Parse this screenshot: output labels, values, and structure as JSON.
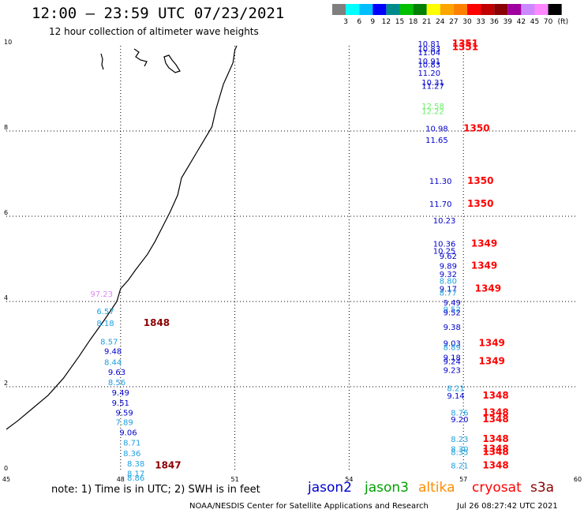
{
  "title": "12:00 – 23:59 UTC 07/23/2021",
  "subtitle": "12 hour collection of altimeter wave heights",
  "colorbar": {
    "colors": [
      "#7f7f7f",
      "#00ffff",
      "#00bfff",
      "#0000ff",
      "#008b8b",
      "#00c000",
      "#008000",
      "#ffff00",
      "#ffa500",
      "#ff8000",
      "#ff0000",
      "#c00000",
      "#8b0000",
      "#a000a0",
      "#cc88ff",
      "#ff88ff",
      "#000000"
    ],
    "labels": [
      "3",
      "6",
      "9",
      "12",
      "15",
      "18",
      "21",
      "24",
      "27",
      "30",
      "33",
      "36",
      "39",
      "42",
      "45",
      "70"
    ],
    "unit": "(ft)"
  },
  "axes": {
    "x_ticks": [
      "45",
      "48",
      "51",
      "54",
      "57",
      "60"
    ],
    "y_ticks": [
      "0",
      "2",
      "4",
      "6",
      "8",
      "10"
    ]
  },
  "chart_data": {
    "type": "scatter",
    "xlim": [
      45,
      60
    ],
    "ylim": [
      0,
      10
    ],
    "grid": true,
    "colors": {
      "jason2": "#0000cc",
      "jason3": "#00a000",
      "altika": "#ff8c00",
      "cryosat": "#ff0000",
      "s3a": "#8b0000",
      "cyan": "#1fa0e0",
      "lightgreen": "#66ee66",
      "violet": "#dd88ee"
    },
    "wave_labels": [
      {
        "x": 56.1,
        "y": 9.98,
        "text": "10.81",
        "c": "jason2"
      },
      {
        "x": 56.1,
        "y": 9.86,
        "text": "10.83",
        "c": "jason2"
      },
      {
        "x": 56.1,
        "y": 9.78,
        "text": "11.04",
        "c": "jason2"
      },
      {
        "x": 56.1,
        "y": 9.57,
        "text": "10.91",
        "c": "jason2"
      },
      {
        "x": 56.1,
        "y": 9.49,
        "text": "10.83",
        "c": "jason2"
      },
      {
        "x": 56.1,
        "y": 9.3,
        "text": "11.20",
        "c": "jason2"
      },
      {
        "x": 56.2,
        "y": 9.07,
        "text": "10.31",
        "c": "jason2"
      },
      {
        "x": 56.2,
        "y": 8.99,
        "text": "11.27",
        "c": "jason2"
      },
      {
        "x": 56.2,
        "y": 8.52,
        "text": "12.58",
        "c": "lightgreen"
      },
      {
        "x": 56.2,
        "y": 8.4,
        "text": "12.22",
        "c": "lightgreen"
      },
      {
        "x": 56.3,
        "y": 7.99,
        "text": "10.98",
        "c": "jason2"
      },
      {
        "x": 56.3,
        "y": 7.72,
        "text": "11.65",
        "c": "jason2"
      },
      {
        "x": 56.4,
        "y": 6.76,
        "text": "11.30",
        "c": "jason2"
      },
      {
        "x": 56.4,
        "y": 6.22,
        "text": "11.70",
        "c": "jason2"
      },
      {
        "x": 56.5,
        "y": 5.83,
        "text": "10.23",
        "c": "jason2"
      },
      {
        "x": 56.5,
        "y": 5.29,
        "text": "10.36",
        "c": "jason2"
      },
      {
        "x": 56.5,
        "y": 5.12,
        "text": "10.25",
        "c": "jason2"
      },
      {
        "x": 56.6,
        "y": 5.0,
        "text": "9.62",
        "c": "jason2"
      },
      {
        "x": 56.6,
        "y": 4.77,
        "text": "9.89",
        "c": "jason2"
      },
      {
        "x": 56.6,
        "y": 4.57,
        "text": "9.32",
        "c": "jason2"
      },
      {
        "x": 56.6,
        "y": 4.42,
        "text": "8.80",
        "c": "cyan"
      },
      {
        "x": 56.6,
        "y": 4.23,
        "text": "9.17",
        "c": "jason2"
      },
      {
        "x": 56.6,
        "y": 4.14,
        "text": "8.77",
        "c": "cyan"
      },
      {
        "x": 56.7,
        "y": 3.91,
        "text": "9.49",
        "c": "jason2"
      },
      {
        "x": 56.7,
        "y": 3.75,
        "text": "9.52",
        "c": "cyan"
      },
      {
        "x": 56.7,
        "y": 3.68,
        "text": "9.52",
        "c": "jason2"
      },
      {
        "x": 56.7,
        "y": 3.33,
        "text": "9.38",
        "c": "jason2"
      },
      {
        "x": 56.7,
        "y": 2.95,
        "text": "9.03",
        "c": "jason2"
      },
      {
        "x": 56.7,
        "y": 2.86,
        "text": "8.89",
        "c": "cyan"
      },
      {
        "x": 56.7,
        "y": 2.62,
        "text": "9.18",
        "c": "jason2"
      },
      {
        "x": 56.7,
        "y": 2.53,
        "text": "9.24",
        "c": "jason2"
      },
      {
        "x": 56.7,
        "y": 2.32,
        "text": "9.23",
        "c": "jason2"
      },
      {
        "x": 56.8,
        "y": 1.9,
        "text": "8.21",
        "c": "cyan"
      },
      {
        "x": 56.8,
        "y": 1.72,
        "text": "9.14",
        "c": "jason2"
      },
      {
        "x": 56.9,
        "y": 1.32,
        "text": "8.76",
        "c": "cyan"
      },
      {
        "x": 56.9,
        "y": 1.17,
        "text": "9.20",
        "c": "jason2"
      },
      {
        "x": 56.9,
        "y": 0.7,
        "text": "8.23",
        "c": "cyan"
      },
      {
        "x": 56.9,
        "y": 0.47,
        "text": "8.30",
        "c": "cyan"
      },
      {
        "x": 56.9,
        "y": 0.4,
        "text": "8.35",
        "c": "cyan"
      },
      {
        "x": 56.9,
        "y": 0.08,
        "text": "8.21",
        "c": "cyan"
      },
      {
        "x": 47.5,
        "y": 4.11,
        "text": "97.23",
        "c": "violet"
      },
      {
        "x": 47.6,
        "y": 3.7,
        "text": "6.57",
        "c": "cyan"
      },
      {
        "x": 47.6,
        "y": 3.43,
        "text": "8.18",
        "c": "cyan"
      },
      {
        "x": 47.7,
        "y": 2.99,
        "text": "8.57",
        "c": "cyan"
      },
      {
        "x": 47.8,
        "y": 2.77,
        "text": "9.48",
        "c": "jason2"
      },
      {
        "x": 47.8,
        "y": 2.51,
        "text": "8.44",
        "c": "cyan"
      },
      {
        "x": 47.9,
        "y": 2.28,
        "text": "9.63",
        "c": "jason2"
      },
      {
        "x": 47.9,
        "y": 2.04,
        "text": "8.56",
        "c": "cyan"
      },
      {
        "x": 48.0,
        "y": 1.8,
        "text": "9.49",
        "c": "jason2"
      },
      {
        "x": 48.0,
        "y": 1.56,
        "text": "9.51",
        "c": "jason2"
      },
      {
        "x": 48.1,
        "y": 1.32,
        "text": "9.59",
        "c": "jason2"
      },
      {
        "x": 48.1,
        "y": 1.1,
        "text": "7.89",
        "c": "cyan"
      },
      {
        "x": 48.2,
        "y": 0.86,
        "text": "9.06",
        "c": "jason2"
      },
      {
        "x": 48.3,
        "y": 0.62,
        "text": "8.71",
        "c": "cyan"
      },
      {
        "x": 48.3,
        "y": 0.37,
        "text": "8.36",
        "c": "cyan"
      },
      {
        "x": 48.4,
        "y": 0.13,
        "text": "8.38",
        "c": "cyan"
      },
      {
        "x": 48.4,
        "y": -0.1,
        "text": "8.17",
        "c": "cyan"
      },
      {
        "x": 48.4,
        "y": -0.2,
        "text": "8.86",
        "c": "cyan"
      }
    ],
    "time_labels": [
      {
        "x": 56.7,
        "y": 9.98,
        "text": "1351",
        "c": "cryosat"
      },
      {
        "x": 56.7,
        "y": 9.9,
        "text": "1351",
        "c": "cryosat"
      },
      {
        "x": 57.0,
        "y": 7.99,
        "text": "1350",
        "c": "cryosat"
      },
      {
        "x": 57.1,
        "y": 6.76,
        "text": "1350",
        "c": "cryosat"
      },
      {
        "x": 57.1,
        "y": 6.22,
        "text": "1350",
        "c": "cryosat"
      },
      {
        "x": 57.2,
        "y": 5.29,
        "text": "1349",
        "c": "cryosat"
      },
      {
        "x": 57.2,
        "y": 4.77,
        "text": "1349",
        "c": "cryosat"
      },
      {
        "x": 57.3,
        "y": 4.23,
        "text": "1349",
        "c": "cryosat"
      },
      {
        "x": 57.4,
        "y": 2.95,
        "text": "1349",
        "c": "cryosat"
      },
      {
        "x": 57.4,
        "y": 2.53,
        "text": "1349",
        "c": "cryosat"
      },
      {
        "x": 57.5,
        "y": 1.72,
        "text": "1348",
        "c": "cryosat"
      },
      {
        "x": 57.5,
        "y": 1.32,
        "text": "1348",
        "c": "cryosat"
      },
      {
        "x": 57.5,
        "y": 1.17,
        "text": "1348",
        "c": "cryosat"
      },
      {
        "x": 57.5,
        "y": 0.7,
        "text": "1348",
        "c": "cryosat"
      },
      {
        "x": 57.5,
        "y": 0.47,
        "text": "1348",
        "c": "cryosat"
      },
      {
        "x": 57.5,
        "y": 0.4,
        "text": "1348",
        "c": "cryosat"
      },
      {
        "x": 57.5,
        "y": 0.08,
        "text": "1348",
        "c": "cryosat"
      },
      {
        "x": 48.6,
        "y": 3.43,
        "text": "1848",
        "c": "s3a"
      },
      {
        "x": 48.9,
        "y": 0.08,
        "text": "1847",
        "c": "s3a"
      }
    ]
  },
  "note": "note: 1) Time is in UTC; 2) SWH is in feet",
  "legend": [
    {
      "name": "jason2",
      "color": "#0000cc"
    },
    {
      "name": "jason3",
      "color": "#00a000"
    },
    {
      "name": "altika",
      "color": "#ff8c00"
    },
    {
      "name": "cryosat",
      "color": "#ff0000"
    },
    {
      "name": "s3a",
      "color": "#8b0000"
    }
  ],
  "credit": "NOAA/NESDIS Center for Satellite Applications and Research",
  "timestamp": "Jul 26 08:27:42 UTC 2021"
}
